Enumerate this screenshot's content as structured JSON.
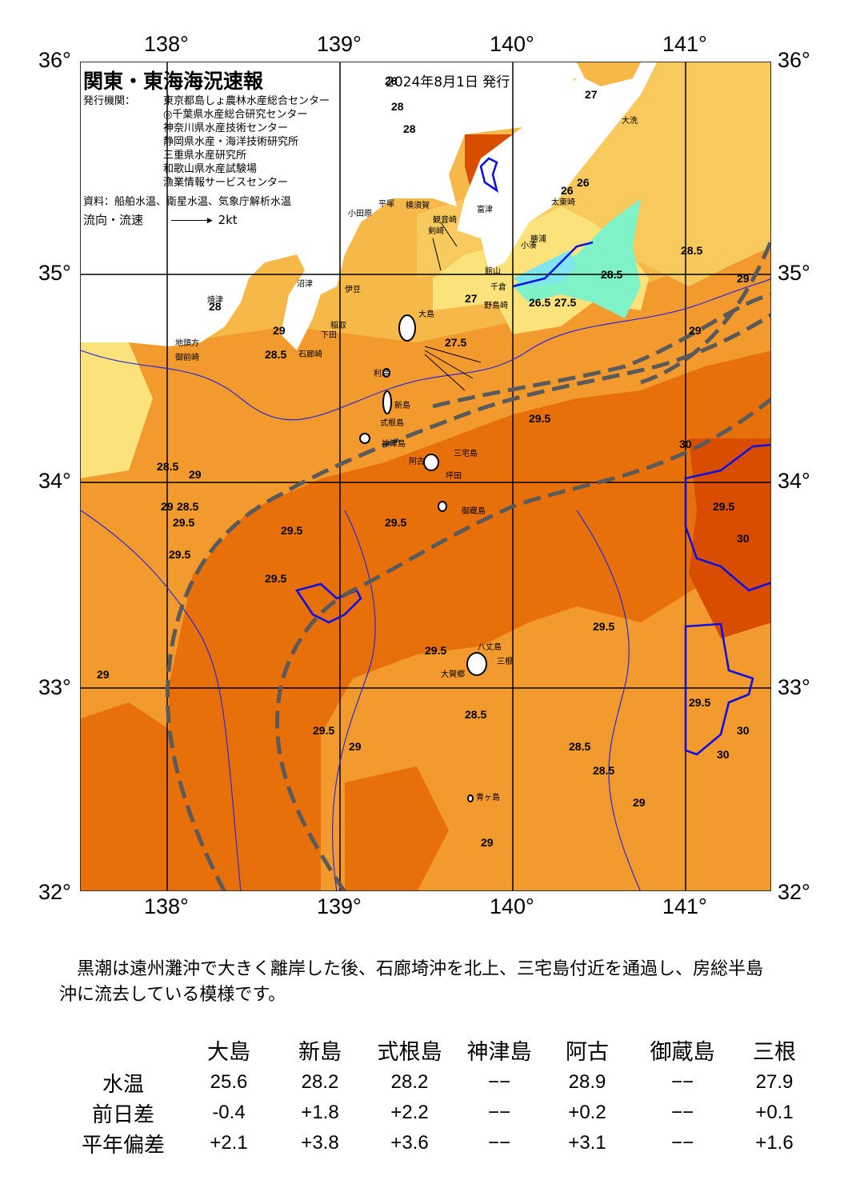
{
  "header": {
    "title": "関東・東海海況速報",
    "date": "2024年8月1日 発行"
  },
  "credits": {
    "label": "発行機関：",
    "orgs": [
      "東京都島しょ農林水産総合センター",
      "◎千葉県水産総合研究センター",
      "神奈川県水産技術センター",
      "静岡県水産・海洋技術研究所",
      "三重県水産研究所",
      "和歌山県水産試験場",
      "漁業情報サービスセンター"
    ],
    "source": "資料：船舶水温、衛星水温、気象庁解析水温",
    "flow_label": "流向・流速",
    "flow_scale": "2kt"
  },
  "axes": {
    "lon_labels": [
      "138°",
      "139°",
      "140°",
      "141°"
    ],
    "lat_labels": [
      "36°",
      "35°",
      "34°",
      "33°",
      "32°"
    ]
  },
  "places": [
    "小田原",
    "平塚",
    "横須賀",
    "富津",
    "観音崎",
    "剣崎",
    "館山",
    "千倉",
    "野島崎",
    "大島",
    "利島",
    "新島",
    "式根島",
    "神津島",
    "三宅島",
    "阿古",
    "坪田",
    "御蔵島",
    "八丈島",
    "三根",
    "大賀郷",
    "青ヶ島",
    "勝浦",
    "太東崎",
    "大洗",
    "小湊",
    "沼津",
    "伊豆",
    "稲取",
    "下田",
    "石廊崎",
    "焼津",
    "御前崎",
    "地頭方"
  ],
  "isotherms": [
    "28",
    "28",
    "28",
    "27",
    "26",
    "26",
    "27.5",
    "27",
    "26.5",
    "27.5",
    "28.5",
    "29",
    "29",
    "28.5",
    "28",
    "28.5",
    "29",
    "29.5",
    "30",
    "29.5",
    "30",
    "30",
    "29.5",
    "30",
    "29",
    "28.5",
    "29.5",
    "29.5",
    "29.5",
    "29",
    "28.5",
    "29",
    "29.5",
    "28.5",
    "29.5",
    "29.5",
    "29",
    "29.5",
    "29.5",
    "28.5",
    "28.5",
    "29",
    "29"
  ],
  "summary": "　黒潮は遠州灘沖で大きく離岸した後、石廊埼沖を北上、三宅島付近を通過し、房総半島沖に流去している模様です。",
  "table": {
    "columns": [
      "大島",
      "新島",
      "式根島",
      "神津島",
      "阿古",
      "御蔵島",
      "三根"
    ],
    "rows": [
      {
        "label": "水温",
        "values": [
          "25.6",
          "28.2",
          "28.2",
          "−−",
          "28.9",
          "−−",
          "27.9"
        ]
      },
      {
        "label": "前日差",
        "values": [
          "-0.4",
          "+1.8",
          "+2.2",
          "−−",
          "+0.2",
          "−−",
          "+0.1"
        ]
      },
      {
        "label": "平年偏差",
        "values": [
          "+2.1",
          "+3.8",
          "+3.6",
          "−−",
          "+3.1",
          "−−",
          "+1.6"
        ]
      }
    ]
  },
  "colors": {
    "warmest": "#d84d00",
    "warm": "#e8700a",
    "mid": "#f39a2e",
    "cool": "#f7c75a",
    "cooler": "#fbe97a",
    "cold": "#7ff2c8",
    "coldest": "#7fe6f0",
    "land": "#ffffff",
    "axis_line": "#000000",
    "kuroshio": "#5a5a5a",
    "isotherm": "#2a2ad8"
  }
}
